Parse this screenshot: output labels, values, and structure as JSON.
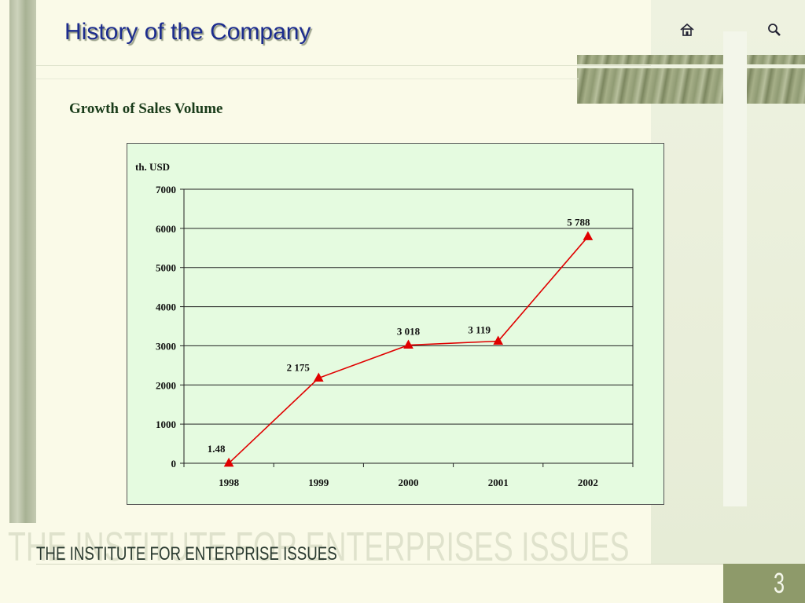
{
  "slide": {
    "title": "History of the Company",
    "subtitle": "Growth of Sales Volume",
    "footer": "THE INSTITUTE FOR ENTERPRISE ISSUES",
    "watermark": "THE INSTITUTE FOR ENTERPRISES ISSUES",
    "page_number": "3",
    "nav": {
      "home_icon": "home-icon",
      "search_icon": "search-icon"
    }
  },
  "colors": {
    "title": "#1c2c8e",
    "series": "#e00000",
    "plot_bg": "#e5fbe0",
    "page_box": "#8e9a6a"
  },
  "chart_data": {
    "type": "line",
    "ylabel": "th. USD",
    "categories": [
      "1998",
      "1999",
      "2000",
      "2001",
      "2002"
    ],
    "series": [
      {
        "values": [
          1.48,
          2175,
          3018,
          3119,
          5788
        ]
      }
    ],
    "data_labels": [
      "1.48",
      "2 175",
      "3 018",
      "3 119",
      "5 788"
    ],
    "ylim": [
      0,
      7000
    ],
    "yticks": [
      "0",
      "1000",
      "2000",
      "3000",
      "4000",
      "5000",
      "6000",
      "7000"
    ],
    "grid": true,
    "marker": "triangle",
    "legend": "none"
  }
}
